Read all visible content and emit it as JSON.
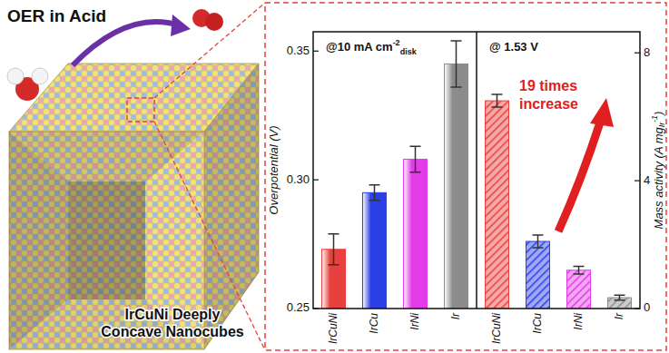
{
  "illustration": {
    "title": "OER in Acid",
    "caption": [
      "IrCuNi Deeply",
      "Concave Nanocubes"
    ]
  },
  "chart_data": [
    {
      "type": "bar",
      "annotation": {
        "text": "@10 mA cm",
        "sup": "-2",
        "sub": "disk"
      },
      "y_label": "Overpotential (V)",
      "categories": [
        "IrCuNi",
        "IrCu",
        "IrNi",
        "Ir"
      ],
      "values": [
        0.273,
        0.295,
        0.308,
        0.345
      ],
      "errors": [
        0.006,
        0.003,
        0.005,
        0.009
      ],
      "colors": [
        "#e8403c",
        "#2a3fe6",
        "#e43be8",
        "#8c8c8c"
      ],
      "ylim": [
        0.25,
        0.3575
      ],
      "yticks": [
        0.25,
        {
          "value": 0.3,
          "label": "0.30"
        },
        0.35
      ]
    },
    {
      "type": "bar",
      "annotation": {
        "text": "@ 1.53 V"
      },
      "callout": [
        "19 times",
        "increase"
      ],
      "y_label": {
        "text": "Mass activity (A mg",
        "sub": "Ir",
        "sup": "-1",
        "end": ")"
      },
      "categories": [
        "IrCuNi",
        "IrCu",
        "IrNi",
        "Ir"
      ],
      "values": [
        6.5,
        2.1,
        1.2,
        0.34
      ],
      "errors": [
        0.2,
        0.2,
        0.12,
        0.08
      ],
      "colors": [
        "#e8403c",
        "#2a3fe6",
        "#e43be8",
        "#8c8c8c"
      ],
      "ylim": [
        0,
        8.66
      ],
      "yticks": [
        0,
        4,
        8
      ]
    }
  ]
}
